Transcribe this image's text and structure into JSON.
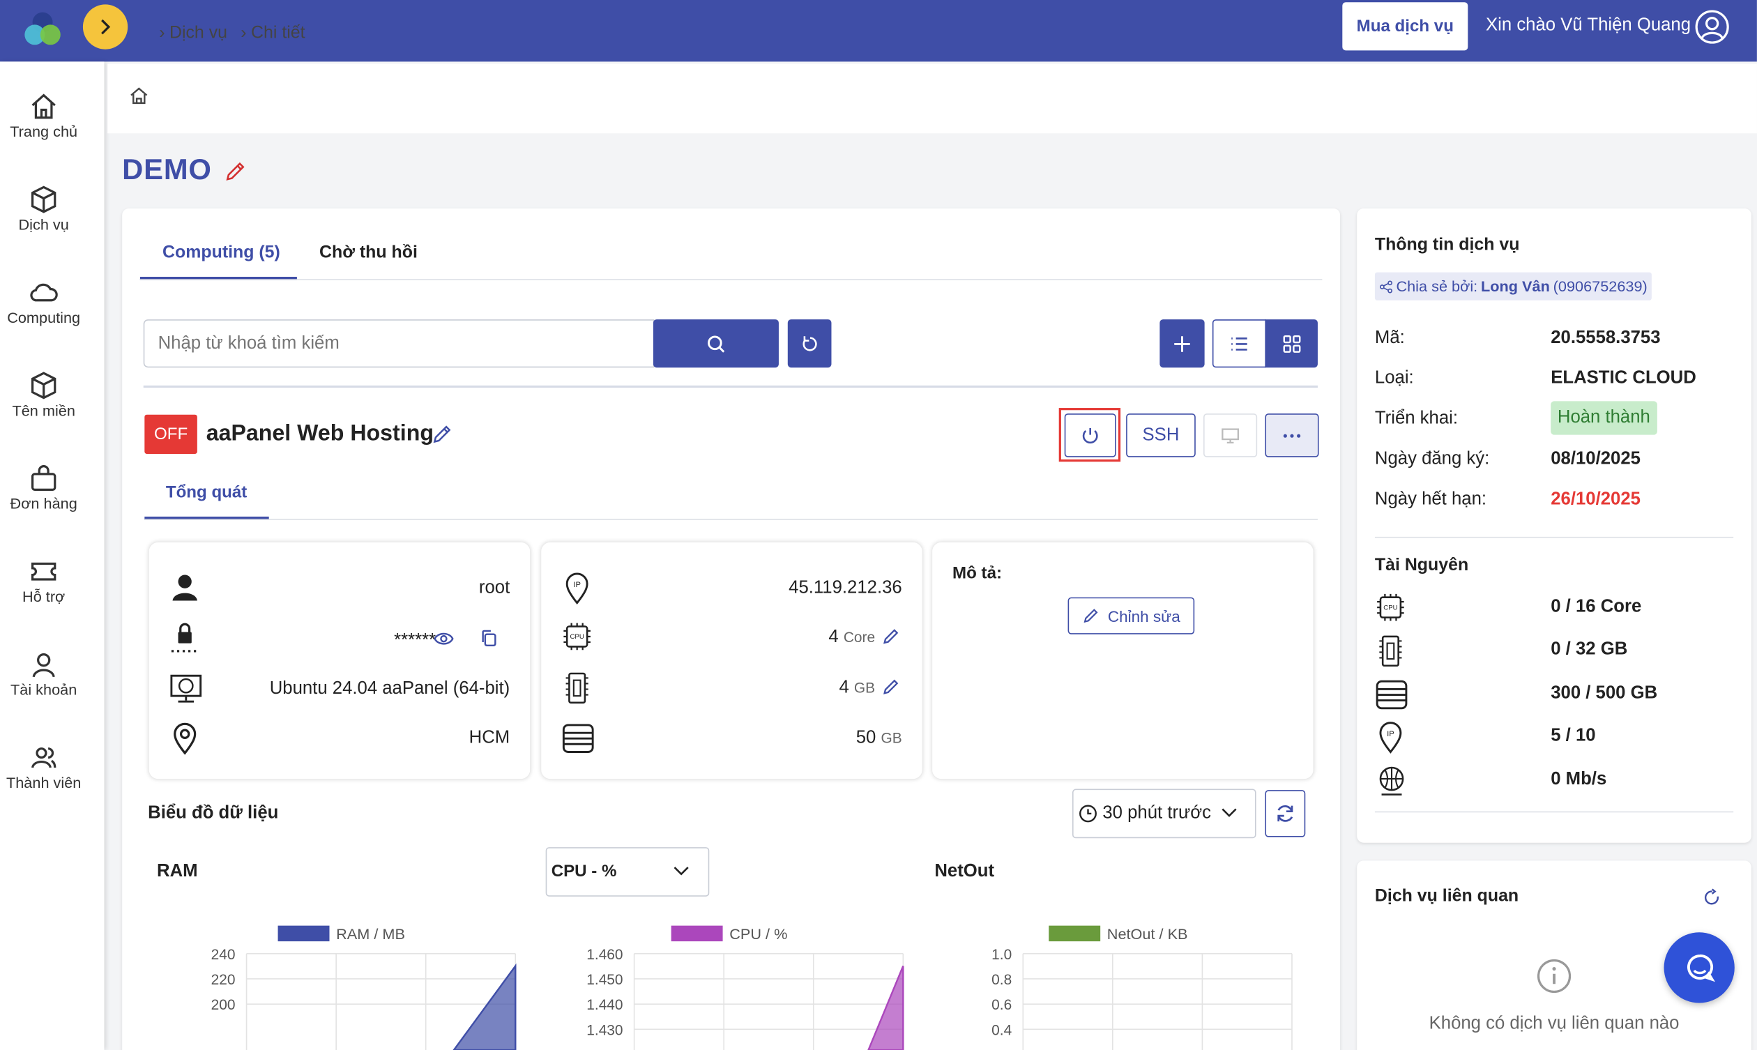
{
  "header": {
    "buy_button": "Mua dịch vụ",
    "greeting": "Xin chào Vũ Thiện Quang"
  },
  "sidebar": {
    "items": [
      {
        "label": "Trang chủ",
        "icon": "home-icon"
      },
      {
        "label": "Dịch vụ",
        "icon": "box-icon"
      },
      {
        "label": "Computing",
        "icon": "cloud-icon"
      },
      {
        "label": "Tên miền",
        "icon": "box-icon"
      },
      {
        "label": "Đơn hàng",
        "icon": "bag-icon"
      },
      {
        "label": "Hỗ trợ",
        "icon": "ticket-icon"
      },
      {
        "label": "Tài khoản",
        "icon": "user-icon"
      },
      {
        "label": "Thành viên",
        "icon": "users-icon"
      }
    ]
  },
  "breadcrumb": [
    "Dịch vụ",
    "Chi tiết"
  ],
  "page_title": "DEMO",
  "tabs": [
    "Computing (5)",
    "Chờ thu hồi"
  ],
  "search": {
    "placeholder": "Nhập từ khoá tìm kiếm"
  },
  "vm": {
    "status": "OFF",
    "name": "aaPanel Web Hosting",
    "ssh_label": "SSH",
    "subtab": "Tổng quát",
    "login": {
      "user": "root",
      "password": "******",
      "os": "Ubuntu 24.04 aaPanel (64-bit)",
      "location": "HCM"
    },
    "specs": {
      "ip": "45.119.212.36",
      "cpu": "4",
      "cpu_unit": "Core",
      "ram": "4",
      "ram_unit": "GB",
      "disk": "50",
      "disk_unit": "GB"
    },
    "description": {
      "label": "Mô tả:",
      "edit_button": "Chỉnh sửa"
    }
  },
  "charts_section": {
    "title": "Biểu đồ dữ liệu",
    "time_range": "30 phút trước",
    "cpu_select": "CPU - %"
  },
  "chart_data": [
    {
      "type": "area",
      "title": "RAM",
      "series": [
        {
          "name": "RAM / MB",
          "values": []
        }
      ],
      "y_ticks": [
        "240",
        "220",
        "200"
      ],
      "color": "#3f4ea7"
    },
    {
      "type": "area",
      "title": "",
      "series": [
        {
          "name": "CPU / %",
          "values": []
        }
      ],
      "y_ticks": [
        "1.460",
        "1.450",
        "1.440",
        "1.430"
      ],
      "color": "#ab47bc"
    },
    {
      "type": "line",
      "title": "NetOut",
      "series": [
        {
          "name": "NetOut / KB",
          "values": []
        }
      ],
      "y_ticks": [
        "1.0",
        "0.8",
        "0.6",
        "0.4"
      ],
      "color": "#6a9b3c"
    }
  ],
  "service_info": {
    "title": "Thông tin dịch vụ",
    "shared_prefix": "Chia sẻ bởi:",
    "shared_name": "Long Vân",
    "shared_phone": "(0906752639)",
    "fields": [
      {
        "label": "Mã:",
        "value": "20.5558.3753"
      },
      {
        "label": "Loại:",
        "value": "ELASTIC CLOUD"
      },
      {
        "label": "Triển khai:",
        "value": "Hoàn thành"
      },
      {
        "label": "Ngày đăng ký:",
        "value": "08/10/2025"
      },
      {
        "label": "Ngày hết hạn:",
        "value": "26/10/2025"
      }
    ],
    "status_color": "#c8eccb",
    "expire_color": "#e53935"
  },
  "resources": {
    "title": "Tài Nguyên",
    "items": [
      {
        "icon": "cpu-icon",
        "value": "0 / 16 Core"
      },
      {
        "icon": "ram-icon",
        "value": "0 / 32 GB"
      },
      {
        "icon": "disk-icon",
        "value": "300 / 500 GB"
      },
      {
        "icon": "ip-icon",
        "value": "5 / 10"
      },
      {
        "icon": "bandwidth-icon",
        "value": "0 Mb/s"
      }
    ]
  },
  "related": {
    "title": "Dịch vụ liên quan",
    "empty_text": "Không có dịch vụ liên quan nào"
  },
  "colors": {
    "primary": "#3f4ea7",
    "accent": "#f5c43c",
    "danger": "#e53935"
  }
}
